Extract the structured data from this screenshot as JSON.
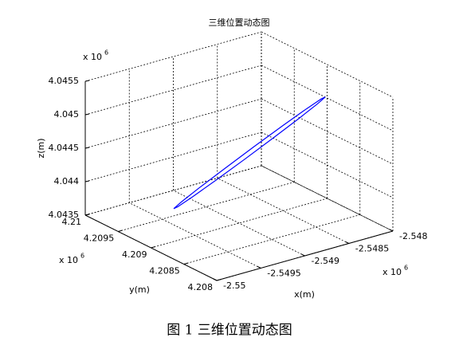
{
  "chart_data": {
    "type": "line3d",
    "title": "三维位置动态图",
    "caption": "图 1  三维位置动态图",
    "xlabel": "x(m)",
    "ylabel": "y(m)",
    "zlabel": "z(m)",
    "xexponent": {
      "base": "x 10",
      "power": "6"
    },
    "yexponent": {
      "base": "x 10",
      "power": "6"
    },
    "zexponent": {
      "base": "x 10",
      "power": "6"
    },
    "xlim": [
      -2.55,
      -2.548
    ],
    "xticks": [
      -2.55,
      -2.5495,
      -2.549,
      -2.5485,
      -2.548
    ],
    "ylim": [
      4.208,
      4.21
    ],
    "yticks": [
      4.208,
      4.2085,
      4.209,
      4.2095,
      4.21
    ],
    "zlim": [
      4.0435,
      4.0455
    ],
    "zticks": [
      4.0435,
      4.044,
      4.0445,
      4.045,
      4.0455
    ],
    "grid": true,
    "series": [
      {
        "color": "#0000ff",
        "x": [
          -2.548022,
          -2.548087,
          -2.548274,
          -2.548553,
          -2.548882,
          -2.549211,
          -2.54949,
          -2.549677,
          -2.549742,
          -2.549677,
          -2.54949,
          -2.549211,
          -2.548882,
          -2.548553,
          -2.548274,
          -2.548087,
          -2.548022
        ],
        "y": [
          4.209,
          4.209028,
          4.209051,
          4.209067,
          4.209072,
          4.209067,
          4.209051,
          4.209028,
          4.209,
          4.208972,
          4.208949,
          4.208933,
          4.208928,
          4.208933,
          4.208949,
          4.208972,
          4.209
        ],
        "z": [
          4.045022,
          4.044933,
          4.044779,
          4.044584,
          4.044376,
          4.044188,
          4.044049,
          4.043979,
          4.04399,
          4.044079,
          4.044233,
          4.044428,
          4.044636,
          4.044824,
          4.044963,
          4.045033,
          4.045022
        ]
      }
    ]
  }
}
